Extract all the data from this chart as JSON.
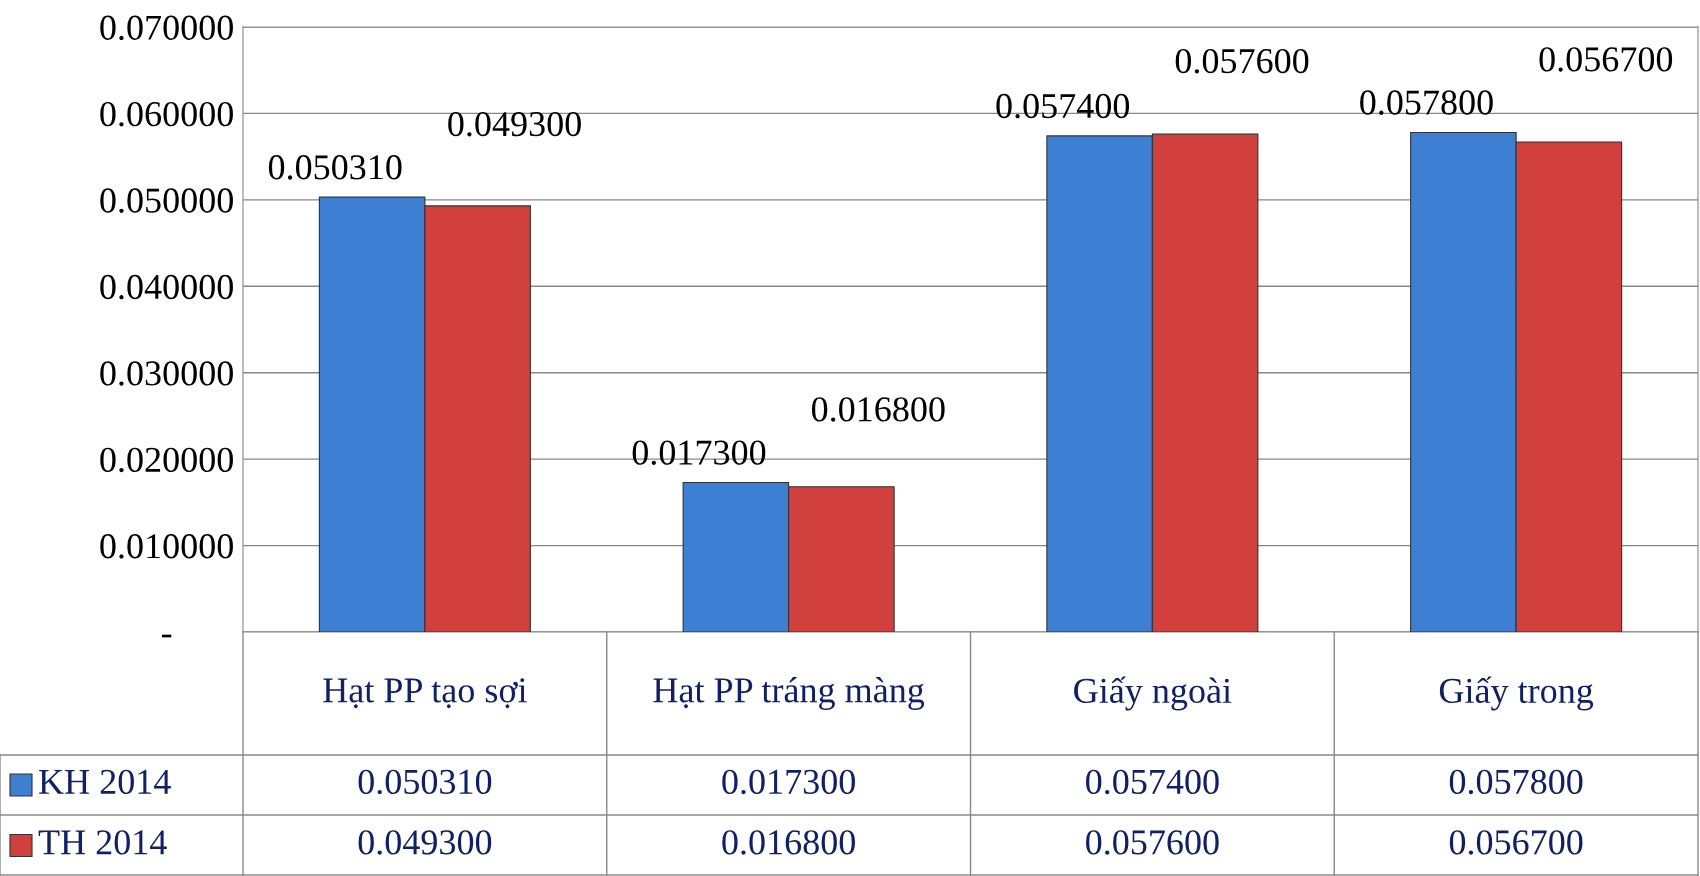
{
  "chart_data": {
    "type": "bar",
    "categories": [
      "Hạt PP tạo sợi",
      "Hạt PP tráng màng",
      "Giấy ngoài",
      "Giấy trong"
    ],
    "series": [
      {
        "name": "KH 2014",
        "color": "#3d80d3",
        "values": [
          0.05031,
          0.0173,
          0.0574,
          0.0578
        ],
        "value_labels": [
          "0.050310",
          "0.017300",
          "0.057400",
          "0.057800"
        ]
      },
      {
        "name": "TH 2014",
        "color": "#d2403d",
        "values": [
          0.0493,
          0.0168,
          0.0576,
          0.0567
        ],
        "value_labels": [
          "0.049300",
          "0.016800",
          "0.057600",
          "0.056700"
        ]
      }
    ],
    "ylim": [
      0,
      0.07
    ],
    "yticks": [
      {
        "value": 0,
        "label": "-"
      },
      {
        "value": 0.01,
        "label": "0.010000"
      },
      {
        "value": 0.02,
        "label": "0.020000"
      },
      {
        "value": 0.03,
        "label": "0.030000"
      },
      {
        "value": 0.04,
        "label": "0.040000"
      },
      {
        "value": 0.05,
        "label": "0.050000"
      },
      {
        "value": 0.06,
        "label": "0.060000"
      },
      {
        "value": 0.07,
        "label": "0.070000"
      }
    ],
    "grid": "y",
    "legend": "bottom"
  }
}
